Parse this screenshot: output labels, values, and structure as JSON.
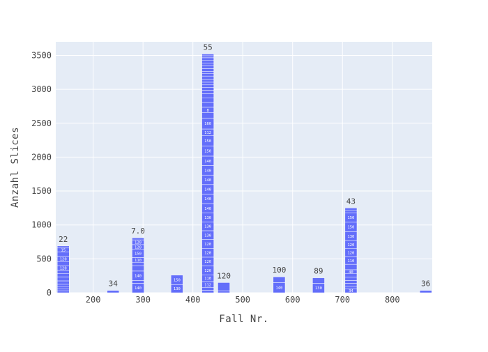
{
  "chart_data": {
    "type": "bar",
    "barmode": "stack",
    "xlabel": "Fall Nr.",
    "ylabel": "Anzahl Slices",
    "xlim": [
      125,
      880
    ],
    "ylim": [
      0,
      3700
    ],
    "xticks": [
      200,
      300,
      400,
      500,
      600,
      700,
      800
    ],
    "yticks": [
      0,
      500,
      1000,
      1500,
      2000,
      2500,
      3000,
      3500
    ],
    "grid": true,
    "colors": {
      "bar": "#636efa",
      "bar_edge": "#ffffff",
      "plot_bg": "#e5ecf6",
      "grid": "#ffffff",
      "text": "#444444"
    },
    "bars": [
      {
        "x": 140,
        "width": 24,
        "label": "22",
        "segments": [
          {
            "v": 30,
            "t": "160"
          },
          {
            "v": 25,
            "t": "150"
          },
          {
            "v": 35,
            "t": "10"
          },
          {
            "v": 35,
            "t": "110"
          },
          {
            "v": 50,
            "t": "14"
          },
          {
            "v": 60,
            "t": ""
          },
          {
            "v": 50,
            "t": "35"
          },
          {
            "v": 45,
            "t": ""
          },
          {
            "v": 70,
            "t": "120"
          },
          {
            "v": 60,
            "t": ""
          },
          {
            "v": 80,
            "t": "120"
          },
          {
            "v": 60,
            "t": ""
          },
          {
            "v": 60,
            "t": "15"
          },
          {
            "v": 30,
            "t": ""
          }
        ]
      },
      {
        "x": 240,
        "width": 24,
        "label": "34",
        "segments": [
          {
            "v": 35,
            "t": ""
          }
        ]
      },
      {
        "x": 290,
        "width": 24,
        "label": "7.0",
        "segments": [
          {
            "v": 140,
            "t": "140"
          },
          {
            "v": 40,
            "t": ""
          },
          {
            "v": 140,
            "t": "140"
          },
          {
            "v": 80,
            "t": ""
          },
          {
            "v": 50,
            "t": "30"
          },
          {
            "v": 70,
            "t": "110"
          },
          {
            "v": 120,
            "t": "150"
          },
          {
            "v": 70,
            "t": "120"
          },
          {
            "v": 70,
            "t": "120"
          },
          {
            "v": 30,
            "t": "110"
          }
        ]
      },
      {
        "x": 368,
        "width": 24,
        "label": "",
        "segments": [
          {
            "v": 120,
            "t": "130"
          },
          {
            "v": 140,
            "t": "150"
          }
        ]
      },
      {
        "x": 430,
        "width": 24,
        "label": "55",
        "segments": [
          {
            "v": 35,
            "t": "30"
          },
          {
            "v": 40,
            "t": ""
          },
          {
            "v": 90,
            "t": "112"
          },
          {
            "v": 100,
            "t": "110"
          },
          {
            "v": 130,
            "t": "120"
          },
          {
            "v": 130,
            "t": "120"
          },
          {
            "v": 130,
            "t": "120"
          },
          {
            "v": 130,
            "t": "120"
          },
          {
            "v": 130,
            "t": "130"
          },
          {
            "v": 130,
            "t": "130"
          },
          {
            "v": 130,
            "t": "130"
          },
          {
            "v": 140,
            "t": "140"
          },
          {
            "v": 140,
            "t": "140"
          },
          {
            "v": 140,
            "t": "140"
          },
          {
            "v": 140,
            "t": "140"
          },
          {
            "v": 140,
            "t": "140"
          },
          {
            "v": 140,
            "t": "140"
          },
          {
            "v": 150,
            "t": "150"
          },
          {
            "v": 150,
            "t": "150"
          },
          {
            "v": 100,
            "t": "112"
          },
          {
            "v": 160,
            "t": "160"
          },
          {
            "v": 80,
            "t": ""
          },
          {
            "v": 80,
            "t": "8"
          },
          {
            "v": 70,
            "t": ""
          },
          {
            "v": 70,
            "t": ""
          },
          {
            "v": 60,
            "t": ""
          },
          {
            "v": 50,
            "t": ""
          },
          {
            "v": 40,
            "t": "7"
          },
          {
            "v": 40,
            "t": ""
          },
          {
            "v": 40,
            "t": "50"
          },
          {
            "v": 40,
            "t": "80"
          },
          {
            "v": 50,
            "t": ""
          },
          {
            "v": 40,
            "t": ""
          },
          {
            "v": 30,
            "t": "10"
          },
          {
            "v": 40,
            "t": "40"
          },
          {
            "v": 40,
            "t": ""
          },
          {
            "v": 40,
            "t": "30"
          },
          {
            "v": 40,
            "t": ""
          },
          {
            "v": 40,
            "t": "30"
          },
          {
            "v": 30,
            "t": "20"
          },
          {
            "v": 25,
            "t": ""
          }
        ]
      },
      {
        "x": 462,
        "width": 24,
        "label": "120",
        "segments": [
          {
            "v": 30,
            "t": "30"
          },
          {
            "v": 120,
            "t": ""
          }
        ]
      },
      {
        "x": 573,
        "width": 24,
        "label": "100",
        "segments": [
          {
            "v": 150,
            "t": "140"
          },
          {
            "v": 85,
            "t": ""
          }
        ]
      },
      {
        "x": 652,
        "width": 24,
        "label": "89",
        "segments": [
          {
            "v": 140,
            "t": "130"
          },
          {
            "v": 80,
            "t": ""
          }
        ]
      },
      {
        "x": 717,
        "width": 24,
        "label": "43",
        "segments": [
          {
            "v": 60,
            "t": "34"
          },
          {
            "v": 40,
            "t": ""
          },
          {
            "v": 40,
            "t": "15"
          },
          {
            "v": 40,
            "t": ""
          },
          {
            "v": 50,
            "t": "30"
          },
          {
            "v": 50,
            "t": ""
          },
          {
            "v": 60,
            "t": "40"
          },
          {
            "v": 80,
            "t": ""
          },
          {
            "v": 110,
            "t": "110"
          },
          {
            "v": 120,
            "t": "120"
          },
          {
            "v": 120,
            "t": "120"
          },
          {
            "v": 130,
            "t": "130"
          },
          {
            "v": 140,
            "t": "150"
          },
          {
            "v": 140,
            "t": "150"
          },
          {
            "v": 40,
            "t": ""
          },
          {
            "v": 30,
            "t": ""
          }
        ]
      },
      {
        "x": 867,
        "width": 24,
        "label": "36",
        "segments": [
          {
            "v": 35,
            "t": ""
          }
        ]
      }
    ]
  }
}
